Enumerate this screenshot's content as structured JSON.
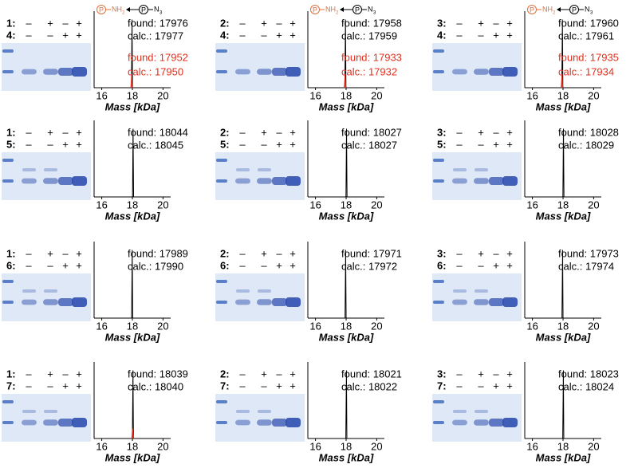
{
  "panels": [
    {
      "scheme": {
        "p1": "P",
        "group1": "NH",
        "sub1": "2",
        "p2": "P",
        "group2": "N",
        "sub2": "3"
      },
      "gel": [
        {
          "label": "1:",
          "signs": [
            "–",
            "+",
            "–",
            "+"
          ]
        },
        {
          "label": "4:",
          "signs": [
            "–",
            "–",
            "+",
            "+"
          ]
        }
      ]
    },
    {
      "scheme": {
        "p1": "P",
        "group1": "NH",
        "sub1": "2",
        "p2": "P",
        "group2": "N",
        "sub2": "3"
      },
      "gel": [
        {
          "label": "2:",
          "signs": [
            "–",
            "+",
            "–",
            "+"
          ]
        },
        {
          "label": "4:",
          "signs": [
            "–",
            "–",
            "+",
            "+"
          ]
        }
      ]
    },
    {
      "scheme": {
        "p1": "P",
        "group1": "NH",
        "sub1": "2",
        "p2": "P",
        "group2": "N",
        "sub2": "3"
      },
      "gel": [
        {
          "label": "3:",
          "signs": [
            "–",
            "+",
            "–",
            "+"
          ]
        },
        {
          "label": "4:",
          "signs": [
            "–",
            "–",
            "+",
            "+"
          ]
        }
      ]
    },
    {
      "gel": [
        {
          "label": "1:",
          "signs": [
            "–",
            "+",
            "–",
            "+"
          ]
        },
        {
          "label": "5:",
          "signs": [
            "–",
            "–",
            "+",
            "+"
          ]
        }
      ]
    },
    {
      "gel": [
        {
          "label": "2:",
          "signs": [
            "–",
            "+",
            "–",
            "+"
          ]
        },
        {
          "label": "5:",
          "signs": [
            "–",
            "–",
            "+",
            "+"
          ]
        }
      ]
    },
    {
      "gel": [
        {
          "label": "3:",
          "signs": [
            "–",
            "+",
            "–",
            "+"
          ]
        },
        {
          "label": "5:",
          "signs": [
            "–",
            "–",
            "+",
            "+"
          ]
        }
      ]
    },
    {
      "gel": [
        {
          "label": "1:",
          "signs": [
            "–",
            "+",
            "–",
            "+"
          ]
        },
        {
          "label": "6:",
          "signs": [
            "–",
            "–",
            "+",
            "+"
          ]
        }
      ]
    },
    {
      "gel": [
        {
          "label": "2:",
          "signs": [
            "–",
            "+",
            "–",
            "+"
          ]
        },
        {
          "label": "6:",
          "signs": [
            "–",
            "–",
            "+",
            "+"
          ]
        }
      ]
    },
    {
      "gel": [
        {
          "label": "3:",
          "signs": [
            "–",
            "+",
            "–",
            "+"
          ]
        },
        {
          "label": "6:",
          "signs": [
            "–",
            "–",
            "+",
            "+"
          ]
        }
      ]
    },
    {
      "gel": [
        {
          "label": "1:",
          "signs": [
            "–",
            "+",
            "–",
            "+"
          ]
        },
        {
          "label": "7:",
          "signs": [
            "–",
            "–",
            "+",
            "+"
          ]
        }
      ]
    },
    {
      "gel": [
        {
          "label": "2:",
          "signs": [
            "–",
            "+",
            "–",
            "+"
          ]
        },
        {
          "label": "7:",
          "signs": [
            "–",
            "–",
            "+",
            "+"
          ]
        }
      ]
    },
    {
      "gel": [
        {
          "label": "3:",
          "signs": [
            "–",
            "+",
            "–",
            "+"
          ]
        },
        {
          "label": "7:",
          "signs": [
            "–",
            "–",
            "+",
            "+"
          ]
        }
      ]
    }
  ],
  "chart_data": [
    {
      "type": "line",
      "xlabel": "Mass [kDa]",
      "xlim": [
        15.5,
        20.5
      ],
      "xticks": [
        16,
        18,
        20
      ],
      "ylim": [
        0,
        100
      ],
      "annotations": [
        {
          "text": "found: 17976",
          "color": "#000000"
        },
        {
          "text": "calc.: 17977",
          "color": "#000000"
        },
        {
          "text": "found: 17952",
          "color": "#e0301e"
        },
        {
          "text": "calc.: 17950",
          "color": "#e0301e"
        }
      ],
      "series": [
        {
          "color": "#000000",
          "x": [
            15.5,
            17.94,
            17.976,
            18.01,
            20.5
          ],
          "values": [
            0,
            0,
            95,
            0,
            0
          ]
        },
        {
          "color": "#e0301e",
          "x": [
            17.9,
            17.952,
            18.0
          ],
          "values": [
            0,
            18,
            0
          ]
        }
      ]
    },
    {
      "type": "line",
      "xlabel": "Mass [kDa]",
      "xlim": [
        15.5,
        20.5
      ],
      "xticks": [
        16,
        18,
        20
      ],
      "ylim": [
        0,
        100
      ],
      "annotations": [
        {
          "text": "found: 17958",
          "color": "#000000"
        },
        {
          "text": "calc.: 17959",
          "color": "#000000"
        },
        {
          "text": "found: 17933",
          "color": "#e0301e"
        },
        {
          "text": "calc.: 17932",
          "color": "#e0301e"
        }
      ],
      "series": [
        {
          "color": "#000000",
          "x": [
            15.5,
            17.92,
            17.958,
            17.99,
            20.5
          ],
          "values": [
            0,
            0,
            95,
            0,
            0
          ]
        },
        {
          "color": "#e0301e",
          "x": [
            17.88,
            17.933,
            17.98
          ],
          "values": [
            0,
            18,
            0
          ]
        }
      ]
    },
    {
      "type": "line",
      "xlabel": "Mass [kDa]",
      "xlim": [
        15.5,
        20.5
      ],
      "xticks": [
        16,
        18,
        20
      ],
      "ylim": [
        0,
        100
      ],
      "annotations": [
        {
          "text": "found: 17960",
          "color": "#000000"
        },
        {
          "text": "calc.: 17961",
          "color": "#000000"
        },
        {
          "text": "found: 17935",
          "color": "#e0301e"
        },
        {
          "text": "calc.: 17934",
          "color": "#e0301e"
        }
      ],
      "series": [
        {
          "color": "#000000",
          "x": [
            15.5,
            17.92,
            17.96,
            17.99,
            20.5
          ],
          "values": [
            0,
            0,
            95,
            0,
            0
          ]
        },
        {
          "color": "#e0301e",
          "x": [
            17.88,
            17.935,
            17.98
          ],
          "values": [
            0,
            18,
            0
          ]
        }
      ]
    },
    {
      "type": "line",
      "xlabel": "Mass [kDa]",
      "xlim": [
        15.5,
        20.5
      ],
      "xticks": [
        16,
        18,
        20
      ],
      "ylim": [
        0,
        100
      ],
      "annotations": [
        {
          "text": "found: 18044",
          "color": "#000000"
        },
        {
          "text": "calc.: 18045",
          "color": "#000000"
        }
      ],
      "series": [
        {
          "color": "#000000",
          "x": [
            15.5,
            18.01,
            18.044,
            18.08,
            20.5
          ],
          "values": [
            0,
            0,
            95,
            0,
            0
          ]
        }
      ]
    },
    {
      "type": "line",
      "xlabel": "Mass [kDa]",
      "xlim": [
        15.5,
        20.5
      ],
      "xticks": [
        16,
        18,
        20
      ],
      "ylim": [
        0,
        100
      ],
      "annotations": [
        {
          "text": "found: 18027",
          "color": "#000000"
        },
        {
          "text": "calc.: 18027",
          "color": "#000000"
        }
      ],
      "series": [
        {
          "color": "#000000",
          "x": [
            15.5,
            17.99,
            18.027,
            18.06,
            20.5
          ],
          "values": [
            0,
            0,
            95,
            0,
            0
          ]
        }
      ]
    },
    {
      "type": "line",
      "xlabel": "Mass [kDa]",
      "xlim": [
        15.5,
        20.5
      ],
      "xticks": [
        16,
        18,
        20
      ],
      "ylim": [
        0,
        100
      ],
      "annotations": [
        {
          "text": "found: 18028",
          "color": "#000000"
        },
        {
          "text": "calc.: 18029",
          "color": "#000000"
        }
      ],
      "series": [
        {
          "color": "#000000",
          "x": [
            15.5,
            17.99,
            18.028,
            18.06,
            20.5
          ],
          "values": [
            0,
            0,
            95,
            0,
            0
          ]
        }
      ]
    },
    {
      "type": "line",
      "xlabel": "Mass [kDa]",
      "xlim": [
        15.5,
        20.5
      ],
      "xticks": [
        16,
        18,
        20
      ],
      "ylim": [
        0,
        100
      ],
      "annotations": [
        {
          "text": "found: 17989",
          "color": "#000000"
        },
        {
          "text": "calc.: 17990",
          "color": "#000000"
        }
      ],
      "series": [
        {
          "color": "#000000",
          "x": [
            15.5,
            17.95,
            17.989,
            18.02,
            20.5
          ],
          "values": [
            0,
            0,
            95,
            0,
            0
          ]
        }
      ]
    },
    {
      "type": "line",
      "xlabel": "Mass [kDa]",
      "xlim": [
        15.5,
        20.5
      ],
      "xticks": [
        16,
        18,
        20
      ],
      "ylim": [
        0,
        100
      ],
      "annotations": [
        {
          "text": "found: 17971",
          "color": "#000000"
        },
        {
          "text": "calc.: 17972",
          "color": "#000000"
        }
      ],
      "series": [
        {
          "color": "#000000",
          "x": [
            15.5,
            17.93,
            17.971,
            18.0,
            20.5
          ],
          "values": [
            0,
            0,
            95,
            0,
            0
          ]
        }
      ]
    },
    {
      "type": "line",
      "xlabel": "Mass [kDa]",
      "xlim": [
        15.5,
        20.5
      ],
      "xticks": [
        16,
        18,
        20
      ],
      "ylim": [
        0,
        100
      ],
      "annotations": [
        {
          "text": "found: 17973",
          "color": "#000000"
        },
        {
          "text": "calc.: 17974",
          "color": "#000000"
        }
      ],
      "series": [
        {
          "color": "#000000",
          "x": [
            15.5,
            17.93,
            17.973,
            18.0,
            20.5
          ],
          "values": [
            0,
            0,
            95,
            0,
            0
          ]
        }
      ]
    },
    {
      "type": "line",
      "xlabel": "Mass [kDa]",
      "xlim": [
        15.5,
        20.5
      ],
      "xticks": [
        16,
        18,
        20
      ],
      "ylim": [
        0,
        100
      ],
      "annotations": [
        {
          "text": "found: 18039",
          "color": "#000000"
        },
        {
          "text": "calc.: 18040",
          "color": "#000000"
        }
      ],
      "series": [
        {
          "color": "#000000",
          "x": [
            15.5,
            18.0,
            18.039,
            18.07,
            20.5
          ],
          "values": [
            0,
            0,
            95,
            0,
            0
          ]
        },
        {
          "color": "#e0301e",
          "x": [
            17.96,
            18.01,
            18.06
          ],
          "values": [
            0,
            14,
            0
          ]
        }
      ]
    },
    {
      "type": "line",
      "xlabel": "Mass [kDa]",
      "xlim": [
        15.5,
        20.5
      ],
      "xticks": [
        16,
        18,
        20
      ],
      "ylim": [
        0,
        100
      ],
      "annotations": [
        {
          "text": "found: 18021",
          "color": "#000000"
        },
        {
          "text": "calc.: 18022",
          "color": "#000000"
        }
      ],
      "series": [
        {
          "color": "#000000",
          "x": [
            15.5,
            17.98,
            18.021,
            18.05,
            20.5
          ],
          "values": [
            0,
            0,
            95,
            0,
            0
          ]
        }
      ]
    },
    {
      "type": "line",
      "xlabel": "Mass [kDa]",
      "xlim": [
        15.5,
        20.5
      ],
      "xticks": [
        16,
        18,
        20
      ],
      "ylim": [
        0,
        100
      ],
      "annotations": [
        {
          "text": "found: 18023",
          "color": "#000000"
        },
        {
          "text": "calc.: 18024",
          "color": "#000000"
        }
      ],
      "series": [
        {
          "color": "#000000",
          "x": [
            15.5,
            17.98,
            18.023,
            18.05,
            20.5
          ],
          "values": [
            0,
            0,
            95,
            0,
            0
          ]
        }
      ]
    }
  ]
}
